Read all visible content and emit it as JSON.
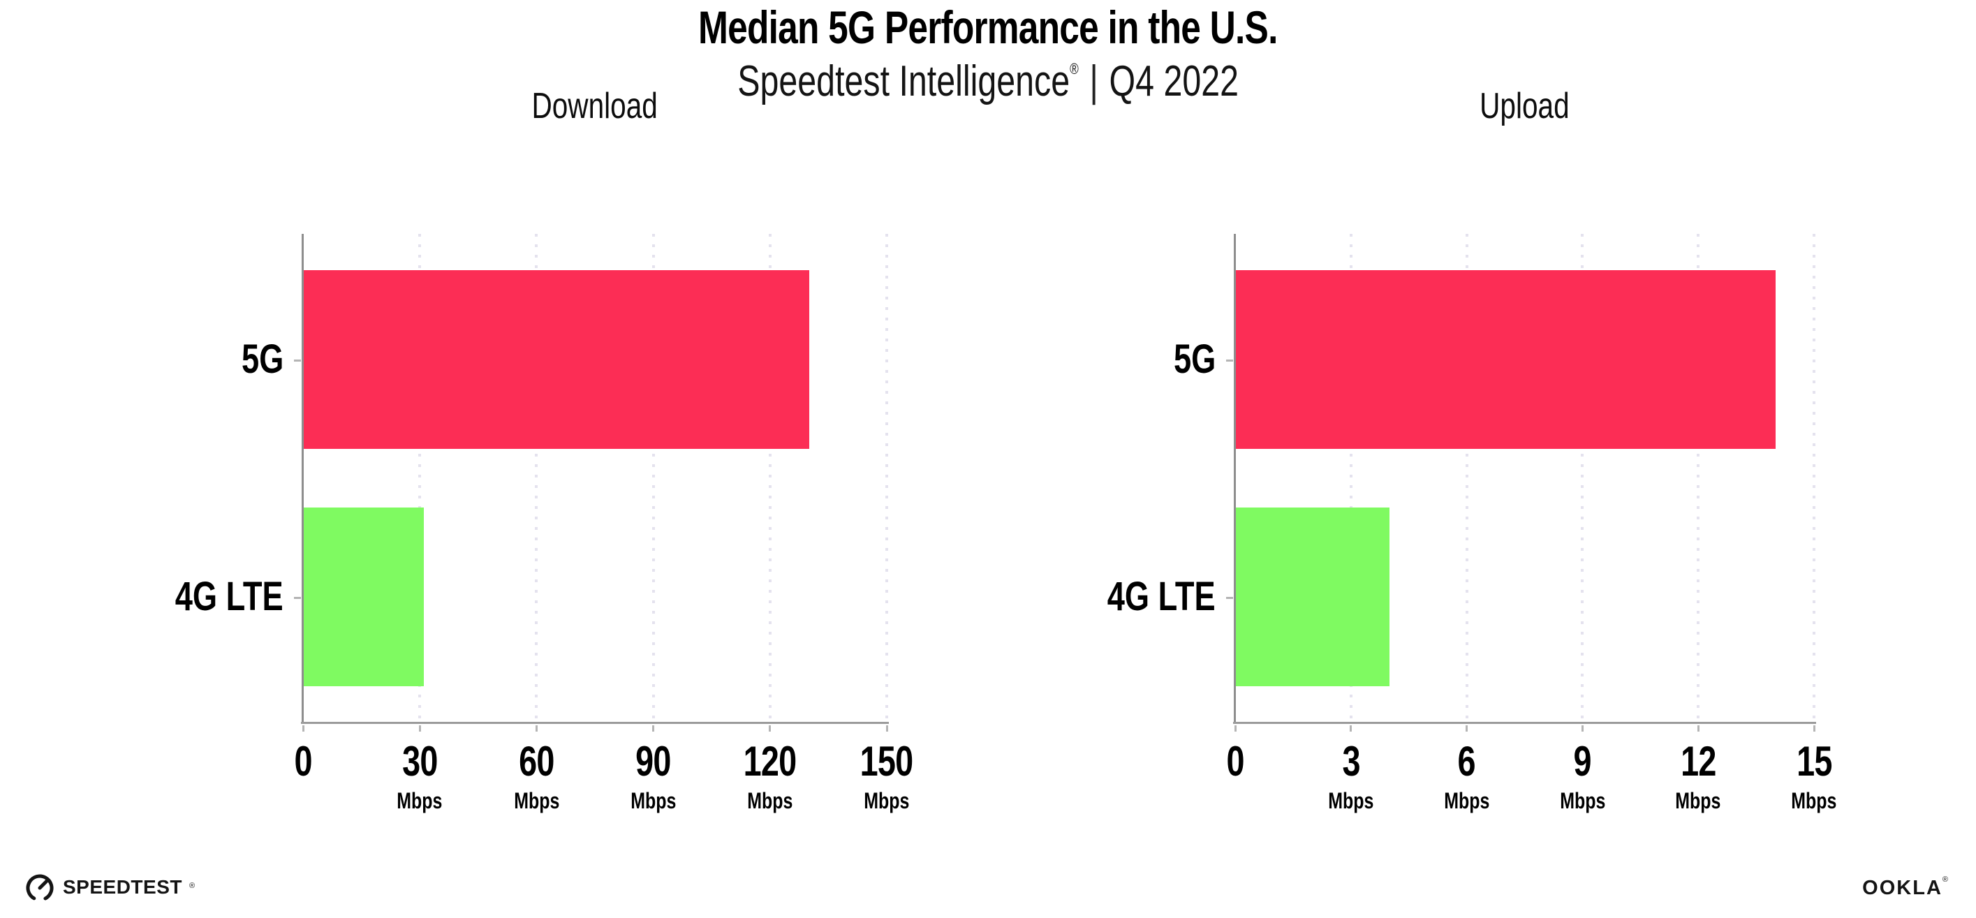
{
  "header": {
    "title": "Median 5G Performance in the U.S.",
    "subtitle_brand": "Speedtest Intelligence",
    "subtitle_reg": "®",
    "subtitle_divider": "|",
    "subtitle_period": "Q4 2022"
  },
  "colors": {
    "bar_5g": "#fc2d55",
    "bar_4g": "#7ffa61",
    "gridline": "#e4e2ee",
    "axis": "#8e8e8e"
  },
  "chart_data": [
    {
      "type": "bar",
      "orientation": "horizontal",
      "title": "Download",
      "categories": [
        "5G",
        "4G LTE"
      ],
      "values": [
        130,
        31
      ],
      "unit": "Mbps",
      "xlim": [
        0,
        150
      ],
      "xticks": [
        0,
        30,
        60,
        90,
        120,
        150
      ],
      "tick_unit_label": "Mbps",
      "grid": "vertical-dotted",
      "legend": "none"
    },
    {
      "type": "bar",
      "orientation": "horizontal",
      "title": "Upload",
      "categories": [
        "5G",
        "4G LTE"
      ],
      "values": [
        14,
        4
      ],
      "unit": "Mbps",
      "xlim": [
        0,
        15
      ],
      "xticks": [
        0,
        3,
        6,
        9,
        12,
        15
      ],
      "tick_unit_label": "Mbps",
      "grid": "vertical-dotted",
      "legend": "none"
    }
  ],
  "footer": {
    "speedtest_label": "SPEEDTEST",
    "speedtest_reg": "®",
    "ookla_label": "OOKLA",
    "ookla_reg": "®"
  }
}
